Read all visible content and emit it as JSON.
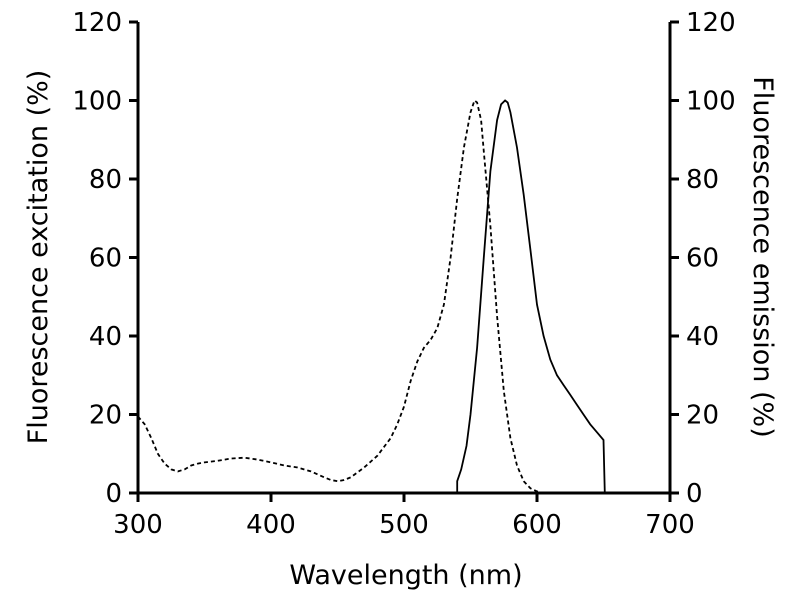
{
  "chart_data": {
    "type": "line",
    "xlabel": "Wavelength (nm)",
    "ylabel_left": "Fluorescence excitation (%)",
    "ylabel_right": "Fluorescence emission (%)",
    "xlim": [
      300,
      700
    ],
    "ylim": [
      0,
      120
    ],
    "x_ticks": [
      300,
      400,
      500,
      600,
      700
    ],
    "y_ticks": [
      0,
      20,
      40,
      60,
      80,
      100,
      120
    ],
    "grid": false,
    "series": [
      {
        "axis": "left",
        "style": "dashed",
        "color": "#000000",
        "x": [
          300,
          305,
          310,
          315,
          320,
          325,
          330,
          335,
          340,
          345,
          350,
          360,
          370,
          380,
          390,
          400,
          410,
          420,
          430,
          440,
          445,
          450,
          455,
          460,
          470,
          480,
          490,
          495,
          500,
          505,
          510,
          515,
          520,
          525,
          530,
          535,
          540,
          545,
          550,
          553,
          555,
          558,
          560,
          565,
          570,
          575,
          580,
          585,
          590,
          595,
          600,
          605
        ],
        "values": [
          19.5,
          17.5,
          14,
          10,
          7.5,
          6,
          5.5,
          6,
          7,
          7.5,
          7.8,
          8.2,
          8.8,
          9,
          8.5,
          7.8,
          7,
          6.5,
          5.5,
          4,
          3.3,
          3,
          3.3,
          4,
          6.5,
          9.5,
          14,
          17.5,
          22,
          28.5,
          33.5,
          37,
          39,
          42,
          48,
          60,
          75,
          88,
          97,
          100,
          99.5,
          95,
          87,
          68,
          45,
          26,
          14,
          7,
          3,
          1.2,
          0.4,
          0
        ]
      },
      {
        "axis": "right",
        "style": "solid",
        "color": "#000000",
        "x": [
          540,
          540,
          543,
          547,
          550,
          555,
          560,
          565,
          570,
          573,
          576,
          578,
          580,
          585,
          590,
          595,
          600,
          605,
          610,
          615,
          620,
          625,
          630,
          635,
          640,
          645,
          650,
          651
        ],
        "values": [
          0,
          3,
          6,
          12,
          20,
          37,
          60,
          82,
          95,
          99,
          100,
          99.5,
          97,
          88,
          76,
          62,
          48,
          40,
          34,
          30,
          27.5,
          25,
          22.5,
          20,
          17.5,
          15.5,
          13.5,
          0
        ]
      }
    ]
  }
}
